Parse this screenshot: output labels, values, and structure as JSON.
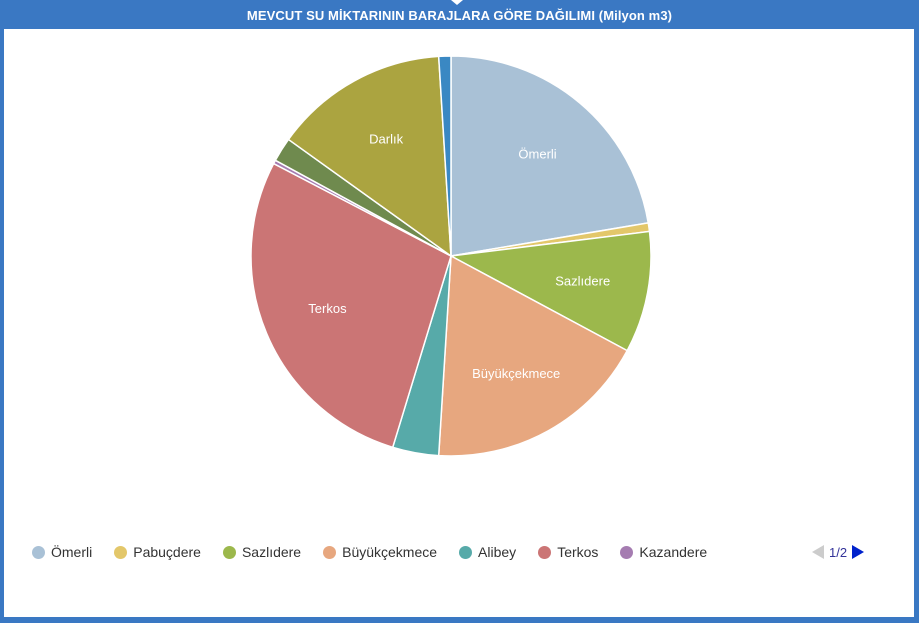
{
  "chart_data": {
    "type": "pie",
    "title": "MEVCUT SU MİKTARININ BARAJLARA GÖRE DAĞILIMI (Milyon m3)",
    "slices": [
      {
        "name": "Ömerli",
        "value": 22.8,
        "color": "#a9c1d6",
        "show_label": true
      },
      {
        "name": "Pabuçdere",
        "value": 0.7,
        "color": "#e3c76a",
        "show_label": false
      },
      {
        "name": "Sazlıdere",
        "value": 10.0,
        "color": "#9cb84c",
        "show_label": true
      },
      {
        "name": "Büyükçekmece",
        "value": 18.5,
        "color": "#e7a77f",
        "show_label": true
      },
      {
        "name": "Alibey",
        "value": 3.8,
        "color": "#57aaa9",
        "show_label": false
      },
      {
        "name": "Terkos",
        "value": 28.5,
        "color": "#cb7575",
        "show_label": true
      },
      {
        "name": "Kazandere",
        "value": 0.3,
        "color": "#a57cb1",
        "show_label": false
      },
      {
        "name": "",
        "value": 2.0,
        "color": "#6f8a4e",
        "show_label": false
      },
      {
        "name": "Darlık",
        "value": 14.4,
        "color": "#aba440",
        "show_label": true
      },
      {
        "name": "",
        "value": 1.0,
        "color": "#3a88c3",
        "show_label": false
      }
    ],
    "legend": {
      "placement": "bottom",
      "items": [
        {
          "label": "Ömerli",
          "color": "#a9c1d6"
        },
        {
          "label": "Pabuçdere",
          "color": "#e3c76a"
        },
        {
          "label": "Sazlıdere",
          "color": "#9cb84c"
        },
        {
          "label": "Büyükçekmece",
          "color": "#e7a77f"
        },
        {
          "label": "Alibey",
          "color": "#57aaa9"
        },
        {
          "label": "Terkos",
          "color": "#cb7575"
        },
        {
          "label": "Kazandere",
          "color": "#a57cb1"
        }
      ],
      "page": "1/2"
    }
  },
  "colors": {
    "frame": "#3a78c3",
    "pager_active": "#0022cc",
    "pager_inactive": "#cccccc"
  }
}
